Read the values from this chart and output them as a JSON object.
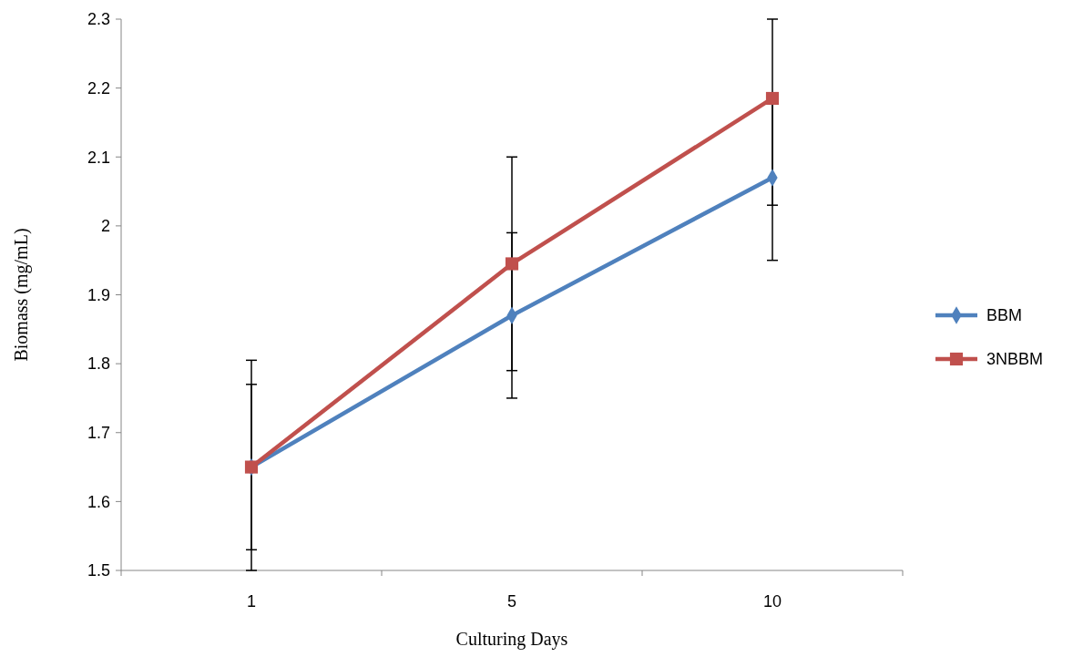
{
  "chart_data": {
    "type": "line",
    "xlabel": "Culturing Days",
    "ylabel": "Biomass (mg/mL)",
    "categories": [
      "1",
      "5",
      "10"
    ],
    "series": [
      {
        "name": "BBM",
        "color": "#4f81bd",
        "marker": "diamond",
        "values": [
          1.65,
          1.87,
          2.07
        ],
        "errors": [
          0.12,
          0.12,
          0.12
        ]
      },
      {
        "name": "3NBBM",
        "color": "#c0504d",
        "marker": "square",
        "values": [
          1.65,
          1.945,
          2.185
        ],
        "errors": [
          [
            1.5,
            1.805
          ],
          0.155,
          [
            2.03,
            2.3
          ]
        ]
      }
    ],
    "ylim": [
      1.5,
      2.3
    ],
    "yticks": [
      1.5,
      1.6,
      1.7,
      1.8,
      1.9,
      2,
      2.1,
      2.2,
      2.3
    ],
    "grid": false,
    "legend": "right",
    "line_style": "solid"
  }
}
